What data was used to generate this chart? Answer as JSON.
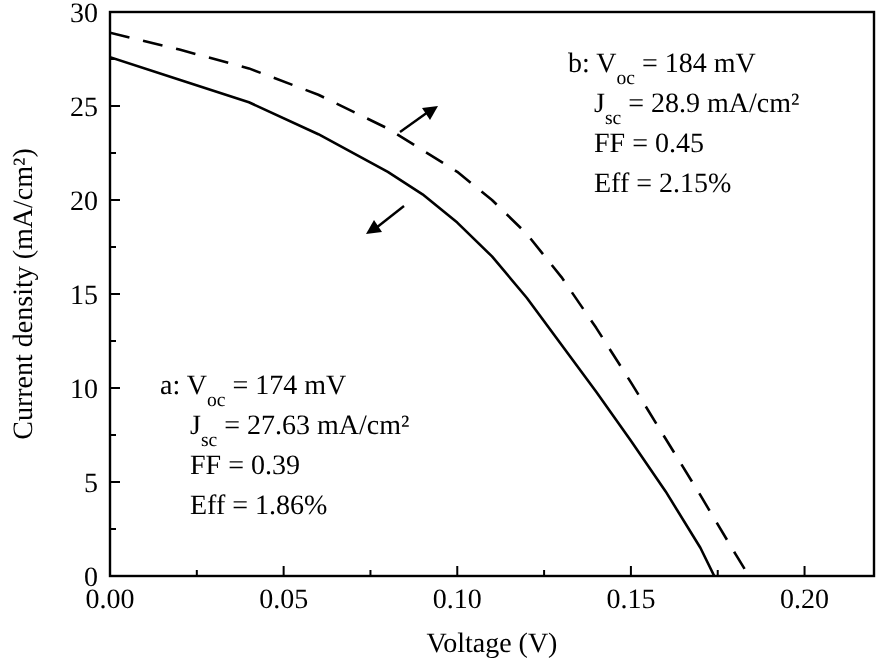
{
  "chart_data": {
    "type": "line",
    "xlabel": "Voltage (V)",
    "ylabel": "Current density (mA/cm²)",
    "xlim": [
      0,
      0.22
    ],
    "ylim": [
      0,
      30
    ],
    "xticks": [
      {
        "value": 0,
        "label": "0.00"
      },
      {
        "value": 0.025,
        "label": null
      },
      {
        "value": 0.05,
        "label": "0.05"
      },
      {
        "value": 0.075,
        "label": null
      },
      {
        "value": 0.1,
        "label": "0.10"
      },
      {
        "value": 0.125,
        "label": null
      },
      {
        "value": 0.15,
        "label": "0.15"
      },
      {
        "value": 0.175,
        "label": null
      },
      {
        "value": 0.2,
        "label": "0.20"
      }
    ],
    "yticks": [
      0,
      {
        "value": 2.5,
        "label": null
      },
      5,
      {
        "value": 7.5,
        "label": null
      },
      10,
      {
        "value": 12.5,
        "label": null
      },
      15,
      {
        "value": 17.5,
        "label": null
      },
      20,
      {
        "value": 22.5,
        "label": null
      },
      25,
      {
        "value": 27.5,
        "label": null
      },
      30
    ],
    "grid": false,
    "marker": "none",
    "series": [
      {
        "color": "#000000",
        "line_style": "solid",
        "x": [
          0,
          0.02,
          0.04,
          0.06,
          0.08,
          0.09,
          0.1,
          0.11,
          0.12,
          0.13,
          0.14,
          0.15,
          0.16,
          0.17,
          0.174
        ],
        "values": [
          27.6,
          26.4,
          25.2,
          23.5,
          21.5,
          20.3,
          18.8,
          17.0,
          14.8,
          12.3,
          9.8,
          7.2,
          4.5,
          1.5,
          0
        ]
      },
      {
        "color": "#000000",
        "line_style": "dashed",
        "x": [
          0,
          0.02,
          0.04,
          0.06,
          0.08,
          0.1,
          0.11,
          0.12,
          0.13,
          0.14,
          0.15,
          0.16,
          0.17,
          0.18,
          0.184
        ],
        "values": [
          28.9,
          28.0,
          27.0,
          25.6,
          23.8,
          21.5,
          20.0,
          18.2,
          15.9,
          13.2,
          10.3,
          7.3,
          4.3,
          1.2,
          0
        ]
      }
    ],
    "annotations": [
      "b: V$_{oc}$ = 184 mV",
      "J$_{sc}$ = 28.9 mA/cm²",
      "FF = 0.45",
      "Eff = 2.15%",
      "a: V$_{oc}$ = 174 mV",
      "J$_{sc}$ = 27.63 mA/cm²",
      "FF = 0.39",
      "Eff = 1.86%"
    ]
  }
}
